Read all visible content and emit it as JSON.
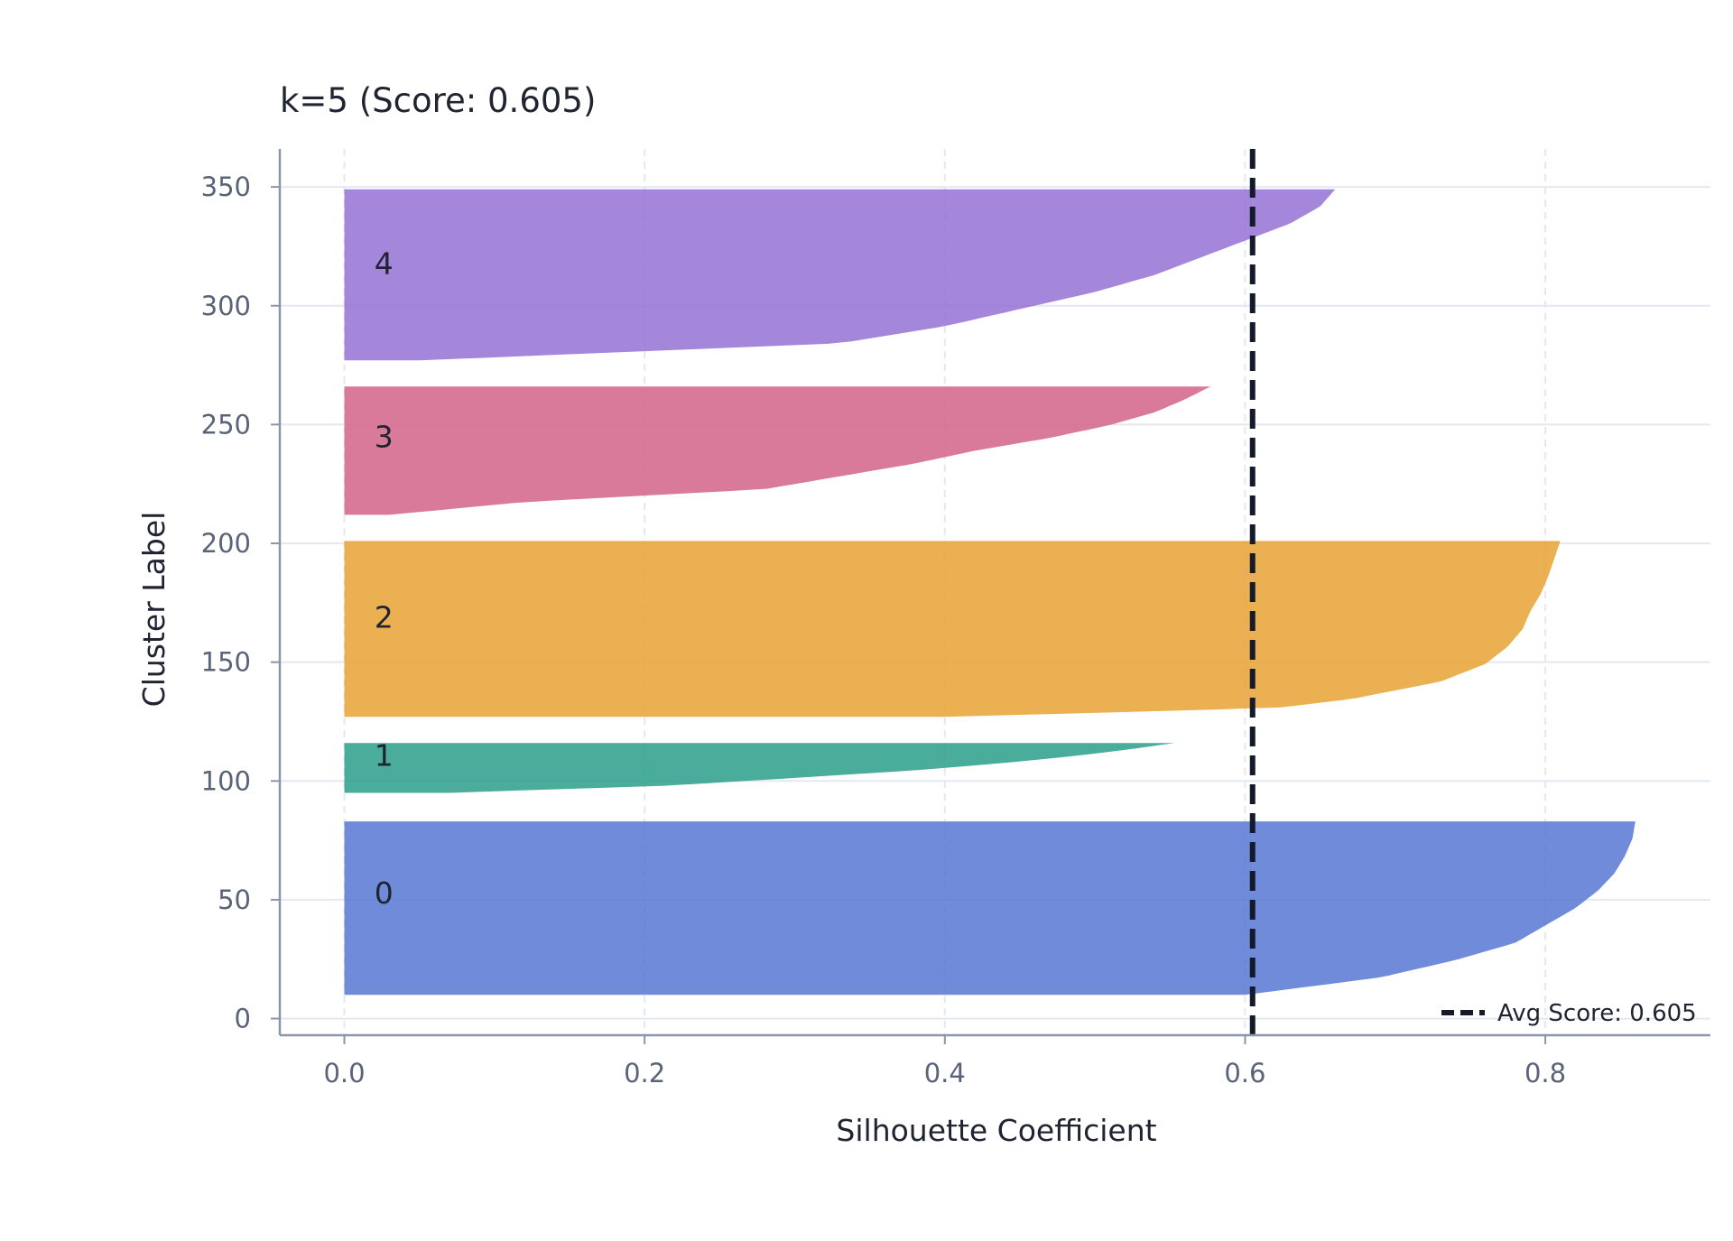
{
  "chart_data": {
    "type": "area",
    "title": "k=5 (Score: 0.605)",
    "xlabel": "Silhouette Coefficient",
    "ylabel": "Cluster Label",
    "xlim": [
      -0.043,
      0.91
    ],
    "ylim": [
      -7,
      366
    ],
    "x_ticks": [
      0.0,
      0.2,
      0.4,
      0.6,
      0.8
    ],
    "x_tick_labels": [
      "0.0",
      "0.2",
      "0.4",
      "0.6",
      "0.8"
    ],
    "y_ticks": [
      0,
      50,
      100,
      150,
      200,
      250,
      300,
      350
    ],
    "y_tick_labels": [
      "0",
      "50",
      "100",
      "150",
      "200",
      "250",
      "300",
      "350"
    ],
    "grid": true,
    "legend": {
      "placement": "bottom-right",
      "entries": [
        "Avg Score: 0.605"
      ]
    },
    "average_score": 0.605,
    "clusters": [
      {
        "label": "0",
        "color": "#5677d2",
        "y_range": [
          10,
          83
        ],
        "max_coefficient": 0.86,
        "label_y": 53,
        "profile": [
          [
            0.0,
            0.6
          ],
          [
            0.1,
            0.69
          ],
          [
            0.2,
            0.74
          ],
          [
            0.3,
            0.78
          ],
          [
            0.4,
            0.8
          ],
          [
            0.5,
            0.82
          ],
          [
            0.6,
            0.835
          ],
          [
            0.7,
            0.846
          ],
          [
            0.8,
            0.853
          ],
          [
            0.9,
            0.858
          ],
          [
            1.0,
            0.86
          ]
        ]
      },
      {
        "label": "1",
        "color": "#2a9d8a",
        "y_range": [
          95,
          116
        ],
        "max_coefficient": 0.553,
        "label_y": 111,
        "profile": [
          [
            0.0,
            0.07
          ],
          [
            0.15,
            0.22
          ],
          [
            0.3,
            0.3
          ],
          [
            0.45,
            0.38
          ],
          [
            0.6,
            0.44
          ],
          [
            0.75,
            0.49
          ],
          [
            0.9,
            0.53
          ],
          [
            1.0,
            0.553
          ]
        ]
      },
      {
        "label": "2",
        "color": "#e8a232",
        "y_range": [
          127,
          201
        ],
        "max_coefficient": 0.81,
        "label_y": 169,
        "profile": [
          [
            0.0,
            0.4
          ],
          [
            0.05,
            0.62
          ],
          [
            0.1,
            0.67
          ],
          [
            0.2,
            0.73
          ],
          [
            0.3,
            0.76
          ],
          [
            0.4,
            0.775
          ],
          [
            0.5,
            0.785
          ],
          [
            0.6,
            0.79
          ],
          [
            0.7,
            0.797
          ],
          [
            0.8,
            0.802
          ],
          [
            0.9,
            0.806
          ],
          [
            1.0,
            0.81
          ]
        ]
      },
      {
        "label": "3",
        "color": "#d4638a",
        "y_range": [
          212,
          266
        ],
        "max_coefficient": 0.577,
        "label_y": 245,
        "profile": [
          [
            0.0,
            0.03
          ],
          [
            0.1,
            0.12
          ],
          [
            0.2,
            0.28
          ],
          [
            0.3,
            0.33
          ],
          [
            0.4,
            0.38
          ],
          [
            0.5,
            0.42
          ],
          [
            0.6,
            0.47
          ],
          [
            0.7,
            0.51
          ],
          [
            0.8,
            0.54
          ],
          [
            0.9,
            0.56
          ],
          [
            1.0,
            0.577
          ]
        ]
      },
      {
        "label": "4",
        "color": "#9471d5",
        "y_range": [
          277,
          349
        ],
        "max_coefficient": 0.66,
        "label_y": 318,
        "profile": [
          [
            0.0,
            0.05
          ],
          [
            0.1,
            0.33
          ],
          [
            0.2,
            0.4
          ],
          [
            0.3,
            0.45
          ],
          [
            0.4,
            0.5
          ],
          [
            0.5,
            0.54
          ],
          [
            0.6,
            0.57
          ],
          [
            0.7,
            0.6
          ],
          [
            0.8,
            0.63
          ],
          [
            0.9,
            0.65
          ],
          [
            1.0,
            0.66
          ]
        ]
      }
    ]
  },
  "colors": {
    "axis": "#8c96aa",
    "grid": "#e4e8ef",
    "avg_line": "#141a2b"
  }
}
